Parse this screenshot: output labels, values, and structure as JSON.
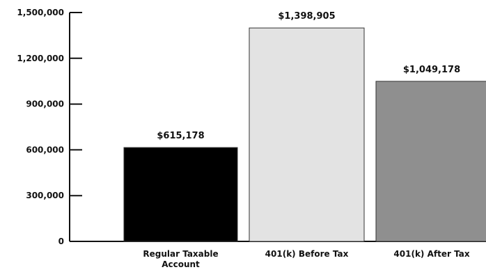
{
  "chart_data": {
    "type": "bar",
    "categories": [
      [
        "Regular Taxable",
        "Account"
      ],
      [
        "401(k) Before Tax"
      ],
      [
        "401(k) After Tax"
      ]
    ],
    "values": [
      615178,
      1398905,
      1049178
    ],
    "data_labels": [
      "$615,178",
      "$1,398,905",
      "$1,049,178"
    ],
    "bar_colors": [
      "#000000",
      "#e3e3e3",
      "#8f8f8f"
    ],
    "bar_stroke": "#333333",
    "yticks": [
      0,
      300000,
      600000,
      900000,
      1200000,
      1500000
    ],
    "ytick_labels": [
      "0",
      "300,000",
      "600,000",
      "900,000",
      "1,200,000",
      "1,500,000"
    ],
    "ylim": [
      0,
      1500000
    ],
    "grid": false,
    "title": "",
    "xlabel": "",
    "ylabel": ""
  }
}
